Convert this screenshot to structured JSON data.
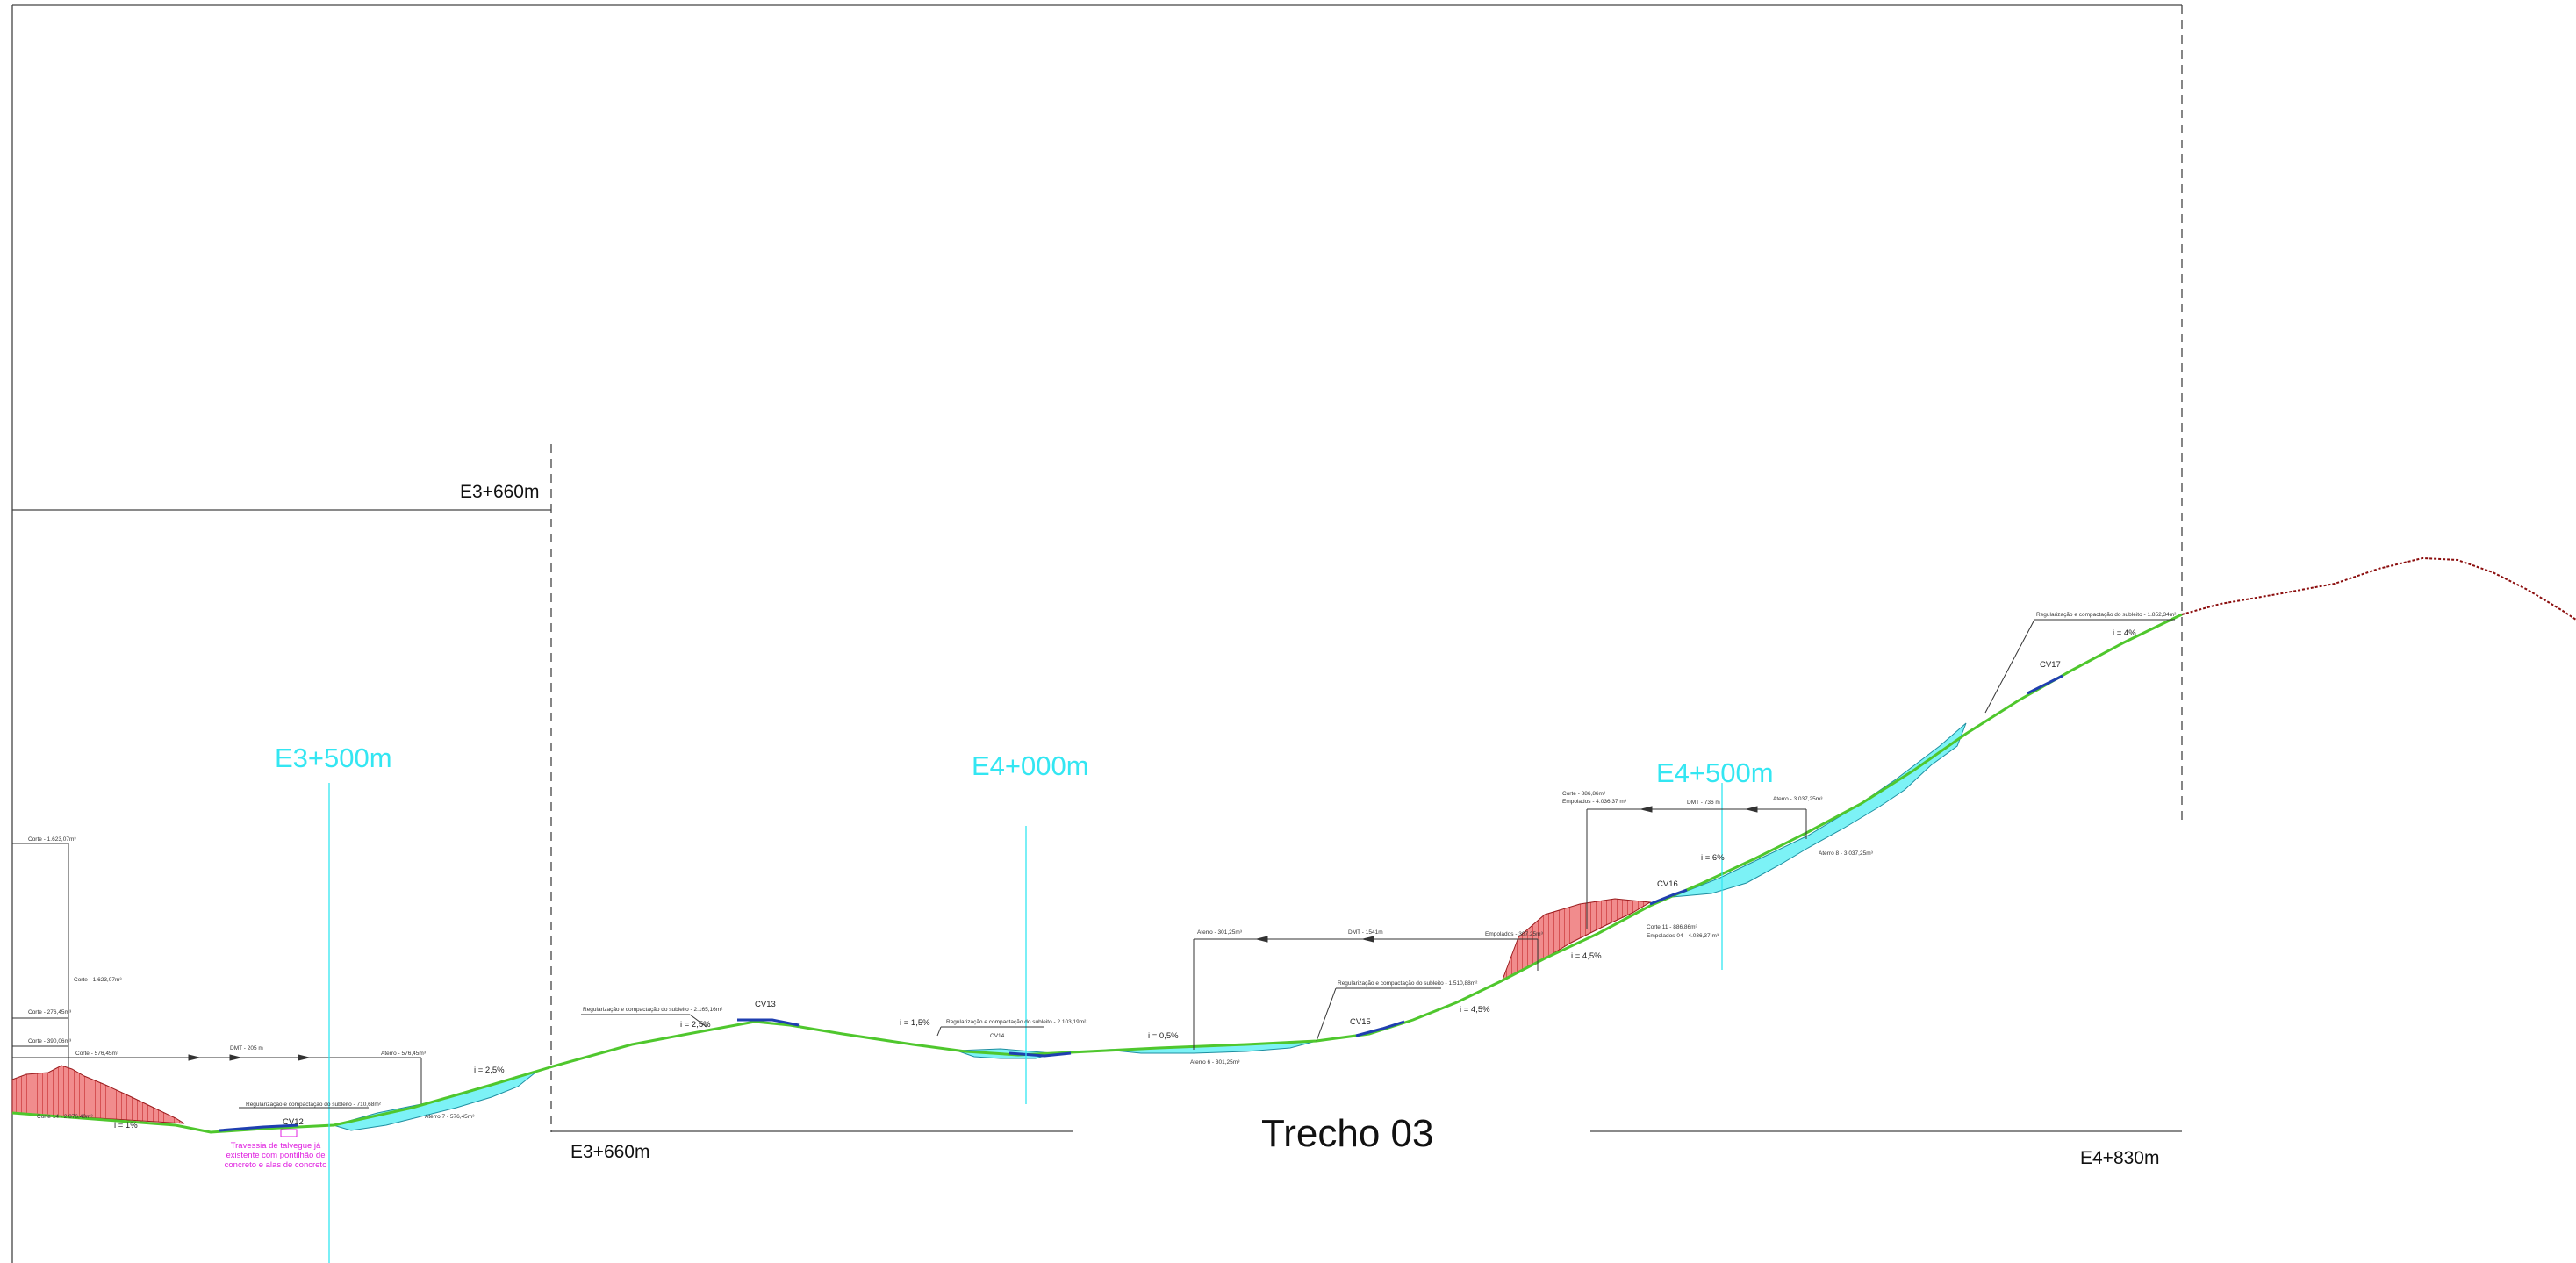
{
  "title": "Trecho 03",
  "stations": [
    {
      "id": "e3_500",
      "label": "E3+500m"
    },
    {
      "id": "e4_000",
      "label": "E4+000m"
    },
    {
      "id": "e4_500",
      "label": "E4+500m"
    }
  ],
  "chainage_marks": {
    "upper_start_end": "E3+660m",
    "lower_start": "E3+660m",
    "lower_end": "E4+830m"
  },
  "culverts": [
    "CV12",
    "CV13",
    "CV14",
    "CV15",
    "CV16",
    "CV17"
  ],
  "slopes": [
    {
      "id": "s1",
      "label": "i = 1%"
    },
    {
      "id": "s2",
      "label": "i = 2,5%"
    },
    {
      "id": "s3",
      "label": "i = 2,5%"
    },
    {
      "id": "s4",
      "label": "i = 1,5%"
    },
    {
      "id": "s5",
      "label": "i = 0,5%"
    },
    {
      "id": "s6",
      "label": "i = 4,5%"
    },
    {
      "id": "s7",
      "label": "i = 4,5%"
    },
    {
      "id": "s8",
      "label": "i = 6%"
    },
    {
      "id": "s9",
      "label": "i = 4%"
    }
  ],
  "annotations": [
    {
      "id": "a1",
      "label": "Corte - 1.623,07m³"
    },
    {
      "id": "a2",
      "label": "Corte - 1.623,07m³"
    },
    {
      "id": "a3",
      "label": "Corte - 276,45m³"
    },
    {
      "id": "a4",
      "label": "Corte - 390,06m³"
    },
    {
      "id": "a5",
      "label": "Corte - 576,45m³"
    },
    {
      "id": "a6",
      "label": "DMT - 205 m"
    },
    {
      "id": "a7",
      "label": "Aterro - 576,45m³"
    },
    {
      "id": "a8",
      "label": "Corte 14 - 2.876,40m³"
    },
    {
      "id": "a9",
      "label": "Aterro 7 - 576,45m³"
    },
    {
      "id": "a10",
      "label": "Regularização e compactação do subleito - 710,68m²"
    },
    {
      "id": "a11",
      "label": "Regularização e compactação do subleito - 2.165,16m²"
    },
    {
      "id": "a12",
      "label": "Regularização e compactação do subleito - 2.103,19m²"
    },
    {
      "id": "a13",
      "label": "Aterro - 301,25m³"
    },
    {
      "id": "a14",
      "label": "DMT - 1541m"
    },
    {
      "id": "a15",
      "label": "Empolados - 307,25m³"
    },
    {
      "id": "a16",
      "label": "Aterro 6 - 301,25m³"
    },
    {
      "id": "a17",
      "label": "Regularização e compactação do subleito - 1.510,88m²"
    },
    {
      "id": "a18",
      "label": "Corte - 886,86m³"
    },
    {
      "id": "a19",
      "label": "Empolados - 4.036,37 m³"
    },
    {
      "id": "a20",
      "label": "DMT - 736 m"
    },
    {
      "id": "a21",
      "label": "Aterro - 3.037,25m³"
    },
    {
      "id": "a22",
      "label": "Corte 11 - 886,86m³"
    },
    {
      "id": "a23",
      "label": "Empolados 04 - 4.036,37 m³"
    },
    {
      "id": "a24",
      "label": "Aterro 8 - 3.037,25m³"
    },
    {
      "id": "a25",
      "label": "Regularização e compactação do subleito - 1.852,34m²"
    }
  ],
  "note_lines": [
    "Travessia de talvegue já",
    "existente com pontilhão de",
    "concreto e alas de concreto"
  ],
  "colors": {
    "station": "#33e6f2",
    "cut": "#e8585a",
    "fill": "#7cf2f6",
    "road": "#4fc72d",
    "note": "#e01ee0",
    "terrain": "#8b0d0d"
  }
}
